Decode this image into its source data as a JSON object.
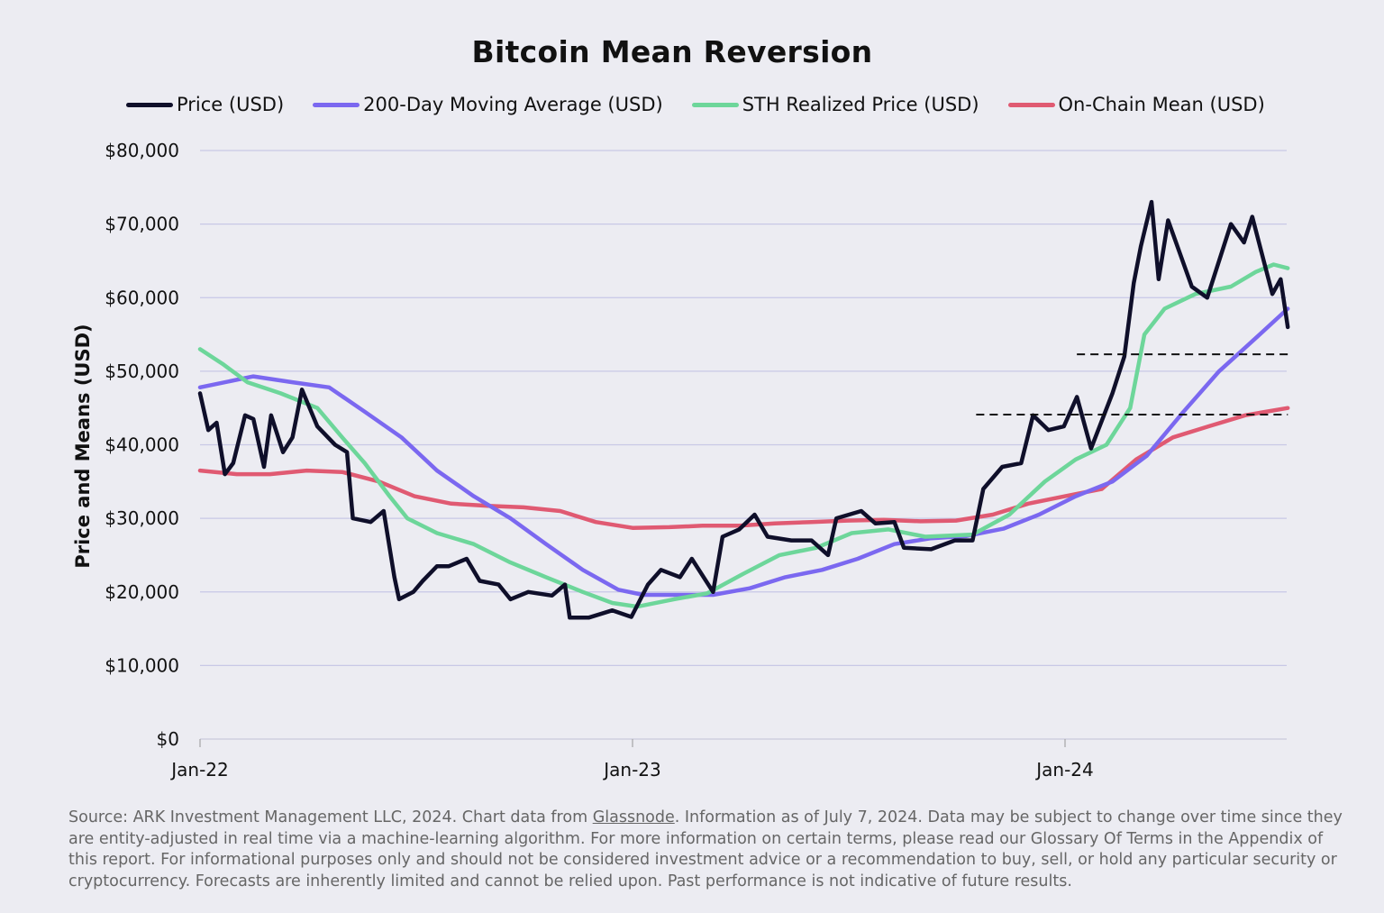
{
  "chart_data": {
    "type": "line",
    "title": "Bitcoin Mean Reversion",
    "ylabel": "Price and Means (USD)",
    "xlabel": "",
    "ylim": [
      0,
      80000
    ],
    "xlim": [
      "2022-01-01",
      "2024-07-07"
    ],
    "y_ticks": [
      0,
      10000,
      20000,
      30000,
      40000,
      50000,
      60000,
      70000,
      80000
    ],
    "y_tick_labels": [
      "$0",
      "$10,000",
      "$20,000",
      "$30,000",
      "$40,000",
      "$50,000",
      "$60,000",
      "$70,000",
      "$80,000"
    ],
    "x_ticks": [
      "2022-01-01",
      "2023-01-01",
      "2024-01-01"
    ],
    "x_tick_labels": [
      "Jan-22",
      "Jan-23",
      "Jan-24"
    ],
    "grid": "horizontal",
    "legend_position": "top",
    "series": [
      {
        "name": "Price (USD)",
        "color": "#0f0f2a",
        "points": [
          [
            "2022-01-01",
            47000
          ],
          [
            "2022-01-08",
            42000
          ],
          [
            "2022-01-15",
            43000
          ],
          [
            "2022-01-22",
            36000
          ],
          [
            "2022-01-29",
            37500
          ],
          [
            "2022-02-08",
            44000
          ],
          [
            "2022-02-15",
            43500
          ],
          [
            "2022-02-24",
            37000
          ],
          [
            "2022-03-02",
            44000
          ],
          [
            "2022-03-12",
            39000
          ],
          [
            "2022-03-20",
            41000
          ],
          [
            "2022-03-28",
            47500
          ],
          [
            "2022-04-10",
            42500
          ],
          [
            "2022-04-25",
            40000
          ],
          [
            "2022-05-05",
            39000
          ],
          [
            "2022-05-10",
            30000
          ],
          [
            "2022-05-25",
            29500
          ],
          [
            "2022-06-05",
            31000
          ],
          [
            "2022-06-14",
            22000
          ],
          [
            "2022-06-18",
            19000
          ],
          [
            "2022-06-30",
            20000
          ],
          [
            "2022-07-08",
            21500
          ],
          [
            "2022-07-20",
            23500
          ],
          [
            "2022-07-30",
            23500
          ],
          [
            "2022-08-14",
            24500
          ],
          [
            "2022-08-25",
            21500
          ],
          [
            "2022-09-10",
            21000
          ],
          [
            "2022-09-20",
            19000
          ],
          [
            "2022-10-05",
            20000
          ],
          [
            "2022-10-25",
            19500
          ],
          [
            "2022-11-05",
            21000
          ],
          [
            "2022-11-09",
            16500
          ],
          [
            "2022-11-25",
            16500
          ],
          [
            "2022-12-15",
            17500
          ],
          [
            "2022-12-31",
            16600
          ],
          [
            "2023-01-14",
            21000
          ],
          [
            "2023-01-25",
            23000
          ],
          [
            "2023-02-10",
            22000
          ],
          [
            "2023-02-20",
            24500
          ],
          [
            "2023-03-10",
            20000
          ],
          [
            "2023-03-18",
            27500
          ],
          [
            "2023-04-01",
            28500
          ],
          [
            "2023-04-14",
            30500
          ],
          [
            "2023-04-25",
            27500
          ],
          [
            "2023-05-15",
            27000
          ],
          [
            "2023-06-01",
            27000
          ],
          [
            "2023-06-15",
            25000
          ],
          [
            "2023-06-22",
            30000
          ],
          [
            "2023-07-13",
            31000
          ],
          [
            "2023-07-25",
            29300
          ],
          [
            "2023-08-10",
            29500
          ],
          [
            "2023-08-18",
            26000
          ],
          [
            "2023-09-10",
            25800
          ],
          [
            "2023-09-30",
            27000
          ],
          [
            "2023-10-15",
            27000
          ],
          [
            "2023-10-24",
            34000
          ],
          [
            "2023-11-09",
            37000
          ],
          [
            "2023-11-25",
            37500
          ],
          [
            "2023-12-05",
            44000
          ],
          [
            "2023-12-18",
            42000
          ],
          [
            "2023-12-31",
            42500
          ],
          [
            "2024-01-11",
            46500
          ],
          [
            "2024-01-23",
            39500
          ],
          [
            "2024-02-10",
            47000
          ],
          [
            "2024-02-20",
            52000
          ],
          [
            "2024-02-28",
            62000
          ],
          [
            "2024-03-05",
            67000
          ],
          [
            "2024-03-14",
            73000
          ],
          [
            "2024-03-20",
            62500
          ],
          [
            "2024-03-28",
            70500
          ],
          [
            "2024-04-17",
            61500
          ],
          [
            "2024-04-30",
            60000
          ],
          [
            "2024-05-20",
            70000
          ],
          [
            "2024-05-31",
            67500
          ],
          [
            "2024-06-07",
            71000
          ],
          [
            "2024-06-24",
            60500
          ],
          [
            "2024-07-01",
            62500
          ],
          [
            "2024-07-07",
            56000
          ]
        ]
      },
      {
        "name": "200-Day Moving Average (USD)",
        "color": "#7b68f0",
        "points": [
          [
            "2022-01-01",
            47800
          ],
          [
            "2022-02-15",
            49300
          ],
          [
            "2022-03-20",
            48500
          ],
          [
            "2022-04-20",
            47800
          ],
          [
            "2022-05-20",
            44500
          ],
          [
            "2022-06-20",
            41000
          ],
          [
            "2022-07-20",
            36500
          ],
          [
            "2022-08-20",
            33000
          ],
          [
            "2022-09-20",
            30000
          ],
          [
            "2022-10-20",
            26500
          ],
          [
            "2022-11-20",
            23000
          ],
          [
            "2022-12-20",
            20300
          ],
          [
            "2023-01-10",
            19600
          ],
          [
            "2023-02-10",
            19600
          ],
          [
            "2023-03-10",
            19600
          ],
          [
            "2023-04-10",
            20500
          ],
          [
            "2023-05-10",
            22000
          ],
          [
            "2023-06-10",
            23000
          ],
          [
            "2023-07-10",
            24500
          ],
          [
            "2023-08-10",
            26500
          ],
          [
            "2023-09-10",
            27300
          ],
          [
            "2023-10-10",
            27600
          ],
          [
            "2023-11-10",
            28600
          ],
          [
            "2023-12-10",
            30500
          ],
          [
            "2024-01-10",
            33000
          ],
          [
            "2024-02-10",
            35000
          ],
          [
            "2024-03-10",
            38500
          ],
          [
            "2024-04-10",
            44500
          ],
          [
            "2024-05-10",
            50000
          ],
          [
            "2024-06-10",
            54500
          ],
          [
            "2024-07-07",
            58500
          ]
        ]
      },
      {
        "name": "STH Realized Price (USD)",
        "color": "#6dd69a",
        "points": [
          [
            "2022-01-01",
            53000
          ],
          [
            "2022-01-20",
            51000
          ],
          [
            "2022-02-10",
            48500
          ],
          [
            "2022-03-10",
            47000
          ],
          [
            "2022-04-10",
            45000
          ],
          [
            "2022-05-01",
            41000
          ],
          [
            "2022-05-20",
            37500
          ],
          [
            "2022-06-10",
            33000
          ],
          [
            "2022-06-25",
            30000
          ],
          [
            "2022-07-20",
            28000
          ],
          [
            "2022-08-20",
            26500
          ],
          [
            "2022-09-20",
            24000
          ],
          [
            "2022-10-20",
            22000
          ],
          [
            "2022-11-20",
            20000
          ],
          [
            "2022-12-15",
            18500
          ],
          [
            "2023-01-05",
            18000
          ],
          [
            "2023-02-05",
            19000
          ],
          [
            "2023-03-05",
            19800
          ],
          [
            "2023-04-05",
            22500
          ],
          [
            "2023-05-05",
            25000
          ],
          [
            "2023-06-05",
            26000
          ],
          [
            "2023-07-05",
            28000
          ],
          [
            "2023-08-05",
            28500
          ],
          [
            "2023-09-05",
            27500
          ],
          [
            "2023-10-15",
            27800
          ],
          [
            "2023-11-15",
            30500
          ],
          [
            "2023-12-15",
            35000
          ],
          [
            "2024-01-10",
            38000
          ],
          [
            "2024-02-05",
            40000
          ],
          [
            "2024-02-25",
            45000
          ],
          [
            "2024-03-08",
            55000
          ],
          [
            "2024-03-25",
            58500
          ],
          [
            "2024-04-20",
            60500
          ],
          [
            "2024-05-20",
            61500
          ],
          [
            "2024-06-10",
            63500
          ],
          [
            "2024-06-25",
            64500
          ],
          [
            "2024-07-07",
            64000
          ]
        ]
      },
      {
        "name": "On-Chain Mean (USD)",
        "color": "#e05a72",
        "points": [
          [
            "2022-01-01",
            36500
          ],
          [
            "2022-02-01",
            36000
          ],
          [
            "2022-03-01",
            36000
          ],
          [
            "2022-04-01",
            36500
          ],
          [
            "2022-05-01",
            36300
          ],
          [
            "2022-06-01",
            35000
          ],
          [
            "2022-07-01",
            33000
          ],
          [
            "2022-08-01",
            32000
          ],
          [
            "2022-09-01",
            31700
          ],
          [
            "2022-10-01",
            31500
          ],
          [
            "2022-11-01",
            31000
          ],
          [
            "2022-12-01",
            29500
          ],
          [
            "2023-01-01",
            28700
          ],
          [
            "2023-02-01",
            28800
          ],
          [
            "2023-03-01",
            29000
          ],
          [
            "2023-04-01",
            29000
          ],
          [
            "2023-05-01",
            29300
          ],
          [
            "2023-06-01",
            29500
          ],
          [
            "2023-07-01",
            29700
          ],
          [
            "2023-08-01",
            29800
          ],
          [
            "2023-09-01",
            29600
          ],
          [
            "2023-10-01",
            29700
          ],
          [
            "2023-11-01",
            30500
          ],
          [
            "2023-12-01",
            32000
          ],
          [
            "2024-01-01",
            33000
          ],
          [
            "2024-02-01",
            34000
          ],
          [
            "2024-03-01",
            38000
          ],
          [
            "2024-04-01",
            41000
          ],
          [
            "2024-05-01",
            42500
          ],
          [
            "2024-06-01",
            44000
          ],
          [
            "2024-07-07",
            45000
          ]
        ]
      }
    ],
    "reference_lines": [
      {
        "style": "dashed",
        "color": "#111111",
        "y": 52300,
        "from": "2024-01-11",
        "to": "2024-07-07"
      },
      {
        "style": "dashed",
        "color": "#111111",
        "y": 44100,
        "from": "2023-10-18",
        "to": "2024-07-07"
      }
    ]
  },
  "footnote": {
    "before_link": "Source: ARK Investment Management LLC, 2024. Chart data from ",
    "link": "Glassnode",
    "after_link": ". Information as of July 7, 2024. Data may be subject to change over time since they are entity-adjusted in real time via a machine-learning algorithm. For more information on certain terms, please read our Glossary Of Terms in the Appendix of this report. For informational purposes only and should not be considered investment advice or a recommendation to buy, sell, or hold any particular security or cryptocurrency. Forecasts are inherently limited and cannot be relied upon. Past performance is not indicative of future results."
  }
}
